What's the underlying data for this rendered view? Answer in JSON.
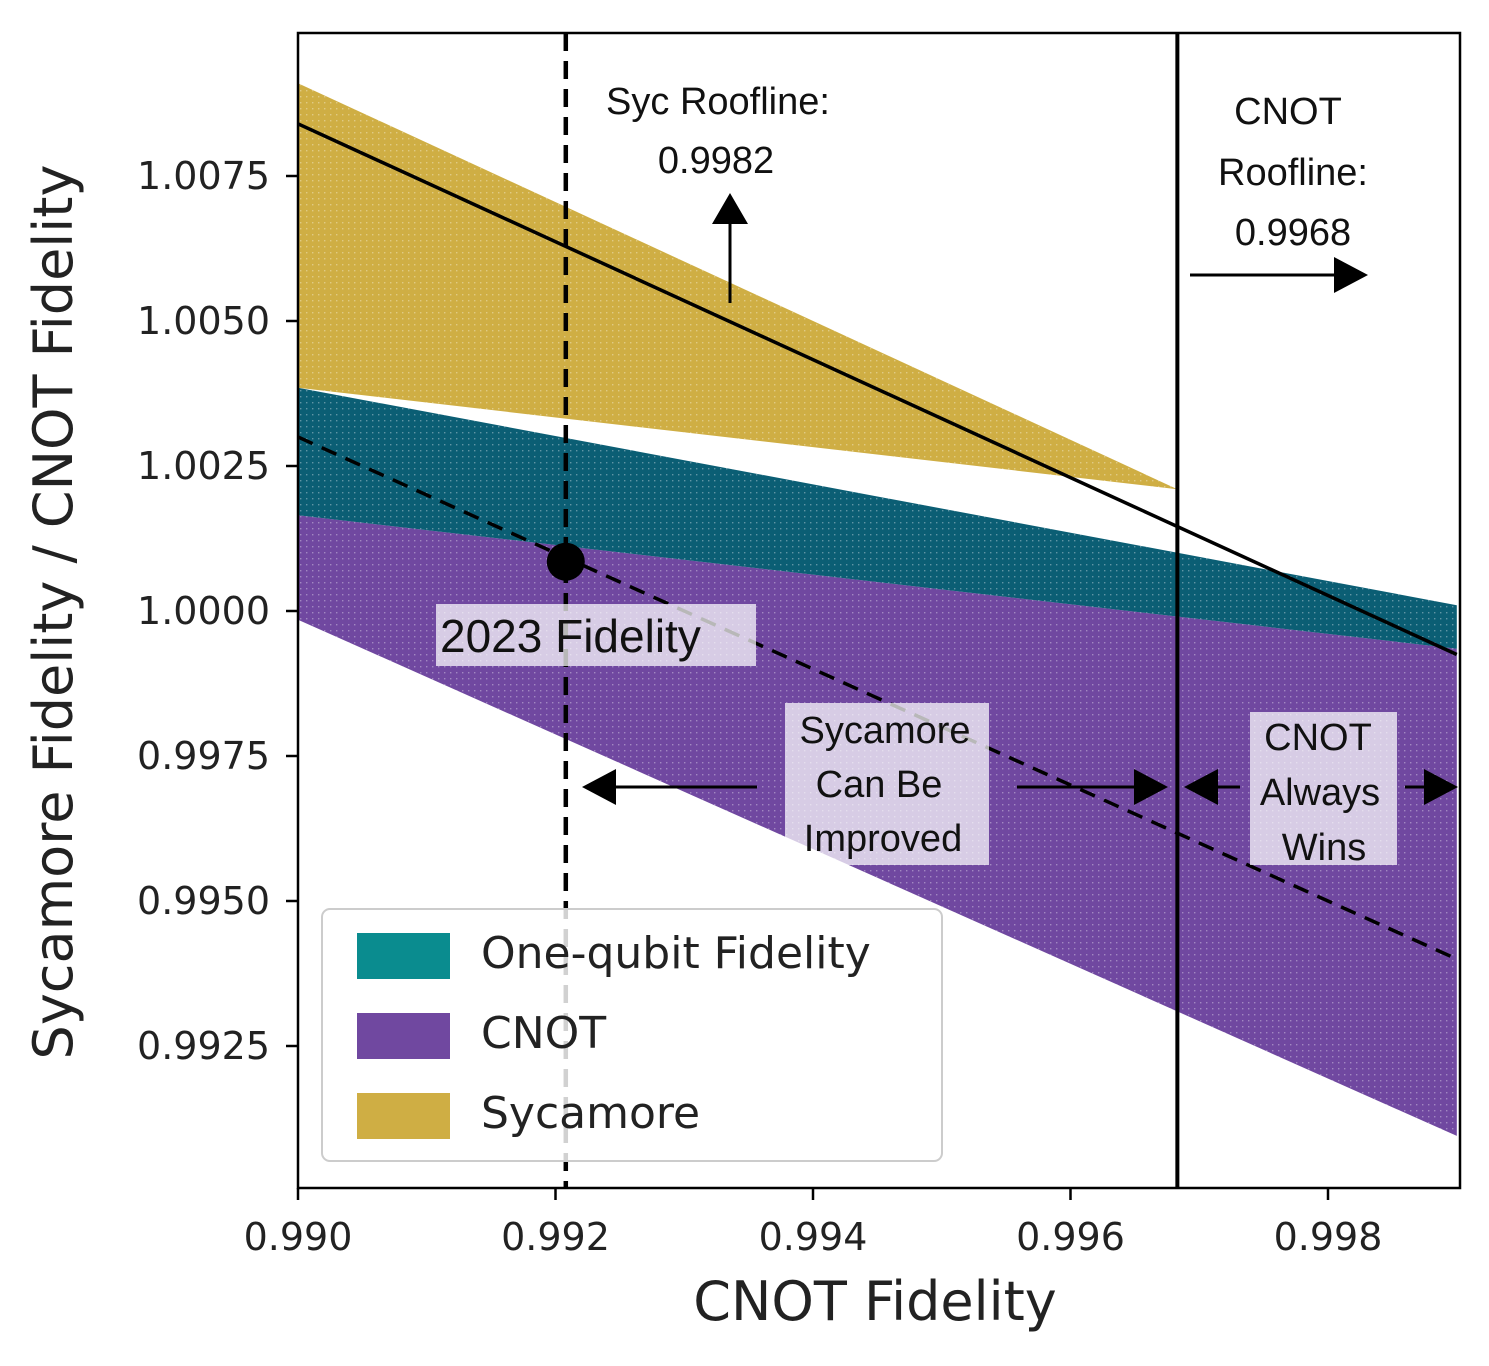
{
  "chart_data": {
    "type": "area",
    "xlabel": "CNOT Fidelity",
    "ylabel": "Sycamore Fidelity / CNOT Fidelity",
    "xlim": [
      0.99,
      0.999
    ],
    "ylim": [
      0.99,
      1.01
    ],
    "x_ticks": [
      "0.990",
      "0.992",
      "0.994",
      "0.996",
      "0.998"
    ],
    "x_tick_values": [
      0.99,
      0.992,
      0.994,
      0.996,
      0.998
    ],
    "y_ticks": [
      "1.0075",
      "1.0050",
      "1.0025",
      "1.0000",
      "0.9975",
      "0.9950",
      "0.9925"
    ],
    "y_tick_values": [
      1.0075,
      1.005,
      1.0025,
      1.0,
      0.9975,
      0.995,
      0.9925
    ],
    "colors": {
      "one_qubit": "#0b5e74",
      "cnot": "#7048a0",
      "sycamore": "#cfae44"
    },
    "bands": [
      {
        "key": "cnot",
        "name": "CNOT",
        "x": [
          0.99,
          0.999
        ],
        "lower": [
          0.99985,
          0.99095
        ],
        "upper": [
          1.00165,
          0.99935
        ]
      },
      {
        "key": "one_qubit",
        "name": "One-qubit Fidelity",
        "x": [
          0.99,
          0.999
        ],
        "lower": [
          1.00165,
          0.99935
        ],
        "upper": [
          1.00385,
          1.0001
        ]
      },
      {
        "key": "sycamore",
        "name": "Sycamore",
        "x": [
          0.99,
          0.99683
        ],
        "lower": [
          1.00385,
          1.0021
        ],
        "upper": [
          1.0091,
          1.0021
        ]
      }
    ],
    "lines": [
      {
        "style": "solid",
        "x": [
          0.99,
          0.999
        ],
        "y": [
          1.0084,
          0.99925
        ]
      },
      {
        "style": "dashed",
        "x": [
          0.99,
          0.999
        ],
        "y": [
          1.003,
          0.994
        ]
      }
    ],
    "vlines": [
      {
        "style": "dashed",
        "x": 0.99208
      },
      {
        "style": "solid",
        "x": 0.99683
      }
    ],
    "point": {
      "x": 0.99208,
      "y": 1.00085
    },
    "legend": {
      "placement": "lower-left",
      "entries": [
        {
          "key": "one_qubit",
          "label": "One-qubit Fidelity"
        },
        {
          "key": "cnot",
          "label": "CNOT"
        },
        {
          "key": "sycamore",
          "label": "Sycamore"
        }
      ]
    },
    "annotations": {
      "syc_roofline_line1": "Syc Roofline:",
      "syc_roofline_line2": "0.9982",
      "cnot_roofline_line1": "CNOT",
      "cnot_roofline_line2": "Roofline:",
      "cnot_roofline_line3": "0.9968",
      "point_label": "2023 Fidelity",
      "improve_line1": "Sycamore",
      "improve_line2": "Can Be",
      "improve_line3": "Improved",
      "always_line1": "CNOT",
      "always_line2": "Always",
      "always_line3": "Wins"
    },
    "grid": false
  }
}
